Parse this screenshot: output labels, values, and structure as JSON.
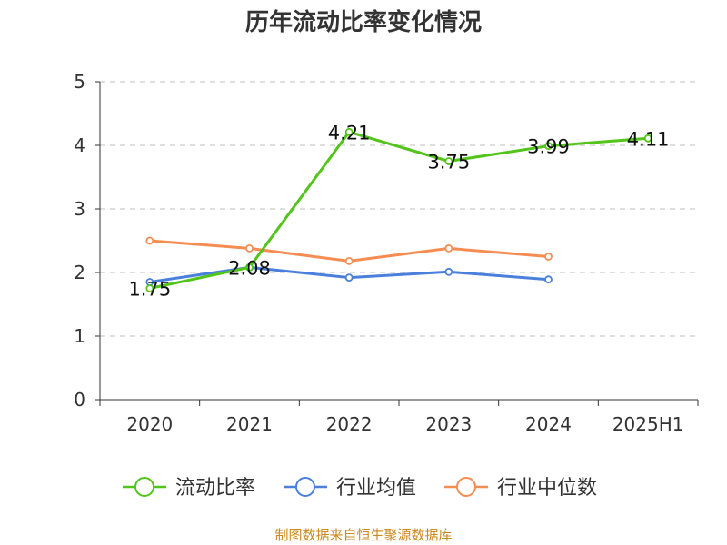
{
  "chart_data": {
    "type": "line",
    "title": "历年流动比率变化情况",
    "categories": [
      "2020",
      "2021",
      "2022",
      "2023",
      "2024",
      "2025H1"
    ],
    "ylim": [
      0,
      5
    ],
    "yticks": [
      0,
      1,
      2,
      3,
      4,
      5
    ],
    "grid": true,
    "legend_position": "bottom",
    "series": [
      {
        "name": "流动比率",
        "color": "#52c41a",
        "values": [
          1.75,
          2.08,
          4.21,
          3.75,
          3.99,
          4.11
        ],
        "labels": [
          "1.75",
          "2.08",
          "4.21",
          "3.75",
          "3.99",
          "4.11"
        ]
      },
      {
        "name": "行业均值",
        "color": "#4a7fdc",
        "values": [
          1.85,
          2.08,
          1.92,
          2.01,
          1.89,
          null
        ]
      },
      {
        "name": "行业中位数",
        "color": "#f58d53",
        "values": [
          2.5,
          2.38,
          2.18,
          2.38,
          2.25,
          null
        ]
      }
    ]
  },
  "footer": "制图数据来自恒生聚源数据库"
}
